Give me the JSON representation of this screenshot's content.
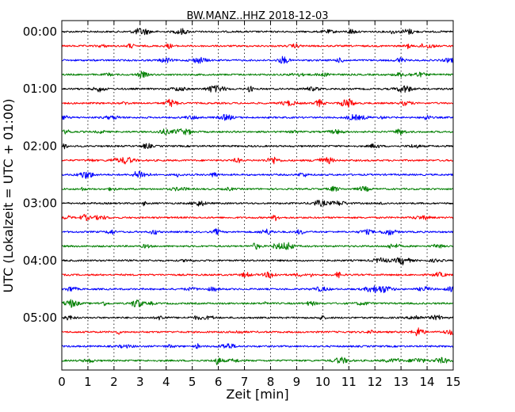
{
  "chart_data": {
    "type": "line",
    "title": "BW.MANZ..HHZ 2018-12-03",
    "xlabel": "Zeit  [min]",
    "ylabel": "UTC (Lokalzeit = UTC + 01:00)",
    "xlim": [
      0,
      15
    ],
    "x_ticks": [
      "0",
      "1",
      "2",
      "3",
      "4",
      "5",
      "6",
      "7",
      "8",
      "9",
      "10",
      "11",
      "12",
      "13",
      "14",
      "15"
    ],
    "y_ticks": [
      "00:00",
      "01:00",
      "02:00",
      "03:00",
      "04:00",
      "05:00"
    ],
    "trace_count": 24,
    "trace_interval_min": 15,
    "start_time": "00:00",
    "trace_colors": [
      "#000000",
      "#ff0000",
      "#0000ff",
      "#007f00"
    ],
    "grid": "vertical dotted"
  }
}
